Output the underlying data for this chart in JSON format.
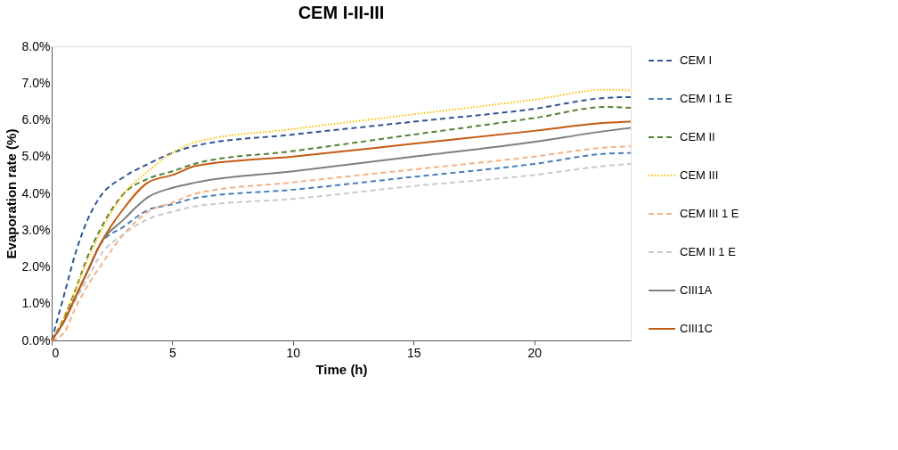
{
  "chart_data": {
    "type": "line",
    "title": "CEM I-II-III",
    "xlabel": "Time (h)",
    "ylabel": "Evaporation rate (%)",
    "xlim": [
      0,
      24
    ],
    "xticks": [
      0,
      5,
      10,
      15,
      20
    ],
    "ylim": [
      0,
      8
    ],
    "yticks": [
      {
        "value": 0,
        "label": "0.0%"
      },
      {
        "value": 1,
        "label": "1.0%"
      },
      {
        "value": 2,
        "label": "2.0%"
      },
      {
        "value": 3,
        "label": "3.0%"
      },
      {
        "value": 4,
        "label": "4.0%"
      },
      {
        "value": 5,
        "label": "5.0%"
      },
      {
        "value": 6,
        "label": "6.0%"
      },
      {
        "value": 7,
        "label": "7.0%"
      },
      {
        "value": 8,
        "label": "8.0%"
      }
    ],
    "grid": false,
    "legend": "right",
    "marker": "none",
    "x": [
      0,
      0.5,
      1,
      1.5,
      2,
      3,
      4,
      5,
      6,
      10,
      15,
      20,
      23,
      24
    ],
    "series": [
      {
        "name": "CEM I",
        "color": "#2f5597",
        "line_style": "dashed",
        "values": [
          0,
          1.2,
          2.4,
          3.3,
          3.9,
          4.45,
          4.8,
          5.1,
          5.3,
          5.6,
          5.95,
          6.3,
          6.6,
          6.62
        ]
      },
      {
        "name": "CEM I 1 E",
        "color": "#4a7ebb",
        "line_style": "dashed",
        "values": [
          0,
          0.5,
          1.2,
          1.9,
          2.6,
          3.1,
          3.55,
          3.7,
          3.88,
          4.1,
          4.45,
          4.8,
          5.08,
          5.1
        ]
      },
      {
        "name": "CEM II",
        "color": "#548235",
        "line_style": "dashed",
        "values": [
          0,
          0.6,
          1.4,
          2.3,
          3.0,
          4.0,
          4.4,
          4.6,
          4.82,
          5.15,
          5.6,
          6.05,
          6.35,
          6.33
        ]
      },
      {
        "name": "CEM III",
        "color": "#ffc000",
        "line_style": "dotted",
        "values": [
          0,
          0.6,
          1.4,
          2.2,
          2.9,
          4.0,
          4.6,
          5.1,
          5.4,
          5.75,
          6.15,
          6.55,
          6.82,
          6.8
        ]
      },
      {
        "name": "CEM III 1 E",
        "color": "#f4b183",
        "line_style": "dashed",
        "values": [
          0,
          0.2,
          0.9,
          1.5,
          2.0,
          2.9,
          3.5,
          3.75,
          4.0,
          4.3,
          4.65,
          5.0,
          5.25,
          5.28
        ]
      },
      {
        "name": "CEM II 1 E",
        "color": "#c9c9c9",
        "line_style": "dashed",
        "values": [
          0,
          0.5,
          1.1,
          1.7,
          2.3,
          2.9,
          3.3,
          3.5,
          3.65,
          3.85,
          4.2,
          4.5,
          4.75,
          4.8
        ]
      },
      {
        "name": "CIII1A",
        "color": "#7f7f7f",
        "line_style": "solid",
        "values": [
          0,
          0.5,
          1.2,
          1.9,
          2.6,
          3.3,
          3.9,
          4.15,
          4.3,
          4.6,
          5.0,
          5.4,
          5.7,
          5.78
        ]
      },
      {
        "name": "CIII1C",
        "color": "#c55a11",
        "line_style": "solid",
        "values": [
          0,
          0.5,
          1.2,
          1.9,
          2.6,
          3.6,
          4.3,
          4.5,
          4.75,
          5.0,
          5.35,
          5.7,
          5.92,
          5.95
        ]
      }
    ]
  }
}
